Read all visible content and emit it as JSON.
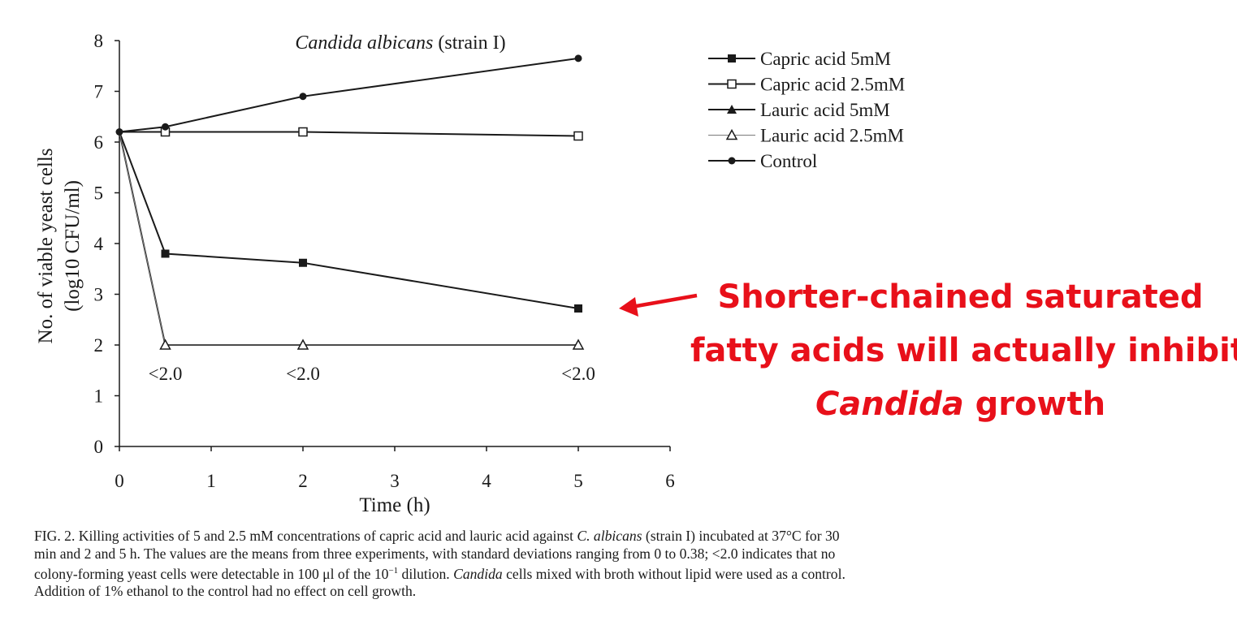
{
  "chart_data": {
    "type": "line",
    "title_italic": "Candida albicans",
    "title_rest": "(strain I)",
    "xlabel": "Time (h)",
    "ylabel_line1": "No. of viable yeast cells",
    "ylabel_line2": "(log10 CFU/ml)",
    "xlim": [
      0,
      6
    ],
    "ylim": [
      0,
      8
    ],
    "x_ticks": [
      "0",
      "1",
      "2",
      "3",
      "4",
      "5",
      "6"
    ],
    "y_ticks": [
      "0",
      "1",
      "2",
      "3",
      "4",
      "5",
      "6",
      "7",
      "8"
    ],
    "x": [
      0,
      0.5,
      2,
      5
    ],
    "series": [
      {
        "name": "Capric acid 5mM",
        "marker": "filled-square",
        "values": [
          6.2,
          3.8,
          3.62,
          2.72
        ]
      },
      {
        "name": "Capric acid 2.5mM",
        "marker": "open-square",
        "values": [
          6.2,
          6.2,
          6.2,
          6.12
        ]
      },
      {
        "name": "Lauric acid 5mM",
        "marker": "filled-triangle",
        "values": [
          6.2,
          2.0,
          2.0,
          2.0
        ]
      },
      {
        "name": "Lauric acid 2.5mM",
        "marker": "open-triangle",
        "values": [
          6.2,
          2.0,
          2.0,
          2.0
        ]
      },
      {
        "name": "Control",
        "marker": "filled-circle",
        "values": [
          6.2,
          6.3,
          6.9,
          7.65
        ]
      }
    ],
    "annotations": [
      {
        "text": "<2.0",
        "x": 0.5
      },
      {
        "text": "<2.0",
        "x": 2
      },
      {
        "text": "<2.0",
        "x": 5
      }
    ],
    "legend_position": "top-right",
    "grid": false,
    "line_color": "#1a1a1a"
  },
  "callout": {
    "line1": "Shorter-chained saturated",
    "line2": "fatty acids will actually inhibit",
    "line3_italic": "Candida",
    "line3_rest": " growth",
    "color": "#e8101a"
  },
  "caption": {
    "p1": "FIG. 2. Killing activities of 5 and 2.5 mM concentrations of capric acid and lauric acid against ",
    "p2_italic": "C. albicans",
    "p3": " (strain I) incubated at 37°C for 30",
    "p4": "min and 2 and 5 h. The values are the means from three experiments, with standard deviations ranging from 0 to 0.38; <2.0 indicates that no",
    "p5": "colony-forming yeast cells were detectable in 100 μl of the 10",
    "p5_sup": "−1",
    "p6": " dilution. ",
    "p7_italic": "Candida",
    "p8": " cells mixed with broth without lipid were used as a control.",
    "p9": "Addition of 1% ethanol to the control had no effect on cell growth."
  }
}
